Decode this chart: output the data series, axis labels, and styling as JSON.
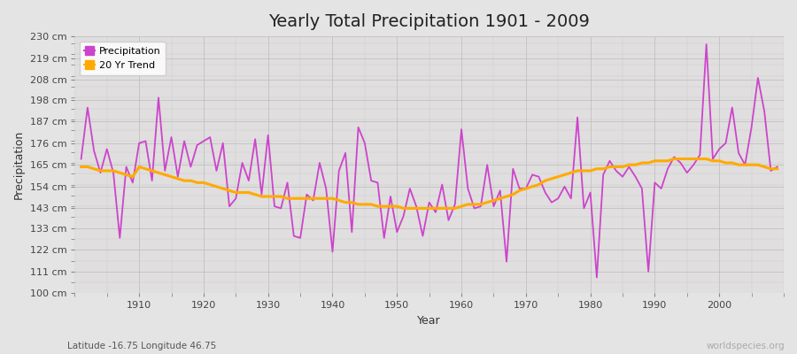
{
  "title": "Yearly Total Precipitation 1901 - 2009",
  "xlabel": "Year",
  "ylabel": "Precipitation",
  "subtitle": "Latitude -16.75 Longitude 46.75",
  "watermark": "worldspecies.org",
  "legend_labels": [
    "Precipitation",
    "20 Yr Trend"
  ],
  "line_color_precip": "#cc44cc",
  "line_color_trend": "#ffaa00",
  "bg_color": "#e4e4e4",
  "plot_bg_color": "#e0dede",
  "ylim": [
    100,
    230
  ],
  "yticks": [
    100,
    111,
    122,
    133,
    143,
    154,
    165,
    176,
    187,
    198,
    208,
    219,
    230
  ],
  "xticks": [
    1910,
    1920,
    1930,
    1940,
    1950,
    1960,
    1970,
    1980,
    1990,
    2000
  ],
  "years": [
    1901,
    1902,
    1903,
    1904,
    1905,
    1906,
    1907,
    1908,
    1909,
    1910,
    1911,
    1912,
    1913,
    1914,
    1915,
    1916,
    1917,
    1918,
    1919,
    1920,
    1921,
    1922,
    1923,
    1924,
    1925,
    1926,
    1927,
    1928,
    1929,
    1930,
    1931,
    1932,
    1933,
    1934,
    1935,
    1936,
    1937,
    1938,
    1939,
    1940,
    1941,
    1942,
    1943,
    1944,
    1945,
    1946,
    1947,
    1948,
    1949,
    1950,
    1951,
    1952,
    1953,
    1954,
    1955,
    1956,
    1957,
    1958,
    1959,
    1960,
    1961,
    1962,
    1963,
    1964,
    1965,
    1966,
    1967,
    1968,
    1969,
    1970,
    1971,
    1972,
    1973,
    1974,
    1975,
    1976,
    1977,
    1978,
    1979,
    1980,
    1981,
    1982,
    1983,
    1984,
    1985,
    1986,
    1987,
    1988,
    1989,
    1990,
    1991,
    1992,
    1993,
    1994,
    1995,
    1996,
    1997,
    1998,
    1999,
    2000,
    2001,
    2002,
    2003,
    2004,
    2005,
    2006,
    2007,
    2008,
    2009
  ],
  "precip": [
    168,
    194,
    172,
    161,
    173,
    161,
    128,
    164,
    156,
    176,
    177,
    157,
    199,
    162,
    179,
    159,
    177,
    164,
    175,
    177,
    179,
    162,
    176,
    144,
    148,
    166,
    157,
    178,
    150,
    180,
    144,
    143,
    156,
    129,
    128,
    150,
    147,
    166,
    153,
    121,
    162,
    171,
    131,
    184,
    176,
    157,
    156,
    128,
    149,
    131,
    139,
    153,
    144,
    129,
    146,
    141,
    155,
    137,
    145,
    183,
    153,
    143,
    144,
    165,
    144,
    152,
    116,
    163,
    153,
    153,
    160,
    159,
    151,
    146,
    148,
    154,
    148,
    189,
    143,
    151,
    108,
    160,
    167,
    162,
    159,
    164,
    159,
    153,
    111,
    156,
    153,
    163,
    169,
    166,
    161,
    165,
    170,
    226,
    168,
    173,
    176,
    194,
    171,
    165,
    184,
    209,
    192,
    162,
    164
  ],
  "trend": [
    164,
    164,
    163,
    162,
    162,
    162,
    161,
    160,
    159,
    164,
    163,
    162,
    161,
    160,
    159,
    158,
    157,
    157,
    156,
    156,
    155,
    154,
    153,
    152,
    151,
    151,
    151,
    150,
    149,
    149,
    149,
    149,
    148,
    148,
    148,
    148,
    148,
    148,
    148,
    148,
    147,
    146,
    146,
    145,
    145,
    145,
    144,
    144,
    144,
    144,
    143,
    143,
    143,
    143,
    143,
    143,
    143,
    143,
    143,
    144,
    145,
    145,
    145,
    146,
    147,
    148,
    149,
    150,
    152,
    153,
    154,
    155,
    157,
    158,
    159,
    160,
    161,
    162,
    162,
    162,
    163,
    163,
    164,
    164,
    164,
    165,
    165,
    166,
    166,
    167,
    167,
    167,
    168,
    168,
    168,
    168,
    168,
    168,
    167,
    167,
    166,
    166,
    165,
    165,
    165,
    165,
    164,
    163,
    163
  ]
}
